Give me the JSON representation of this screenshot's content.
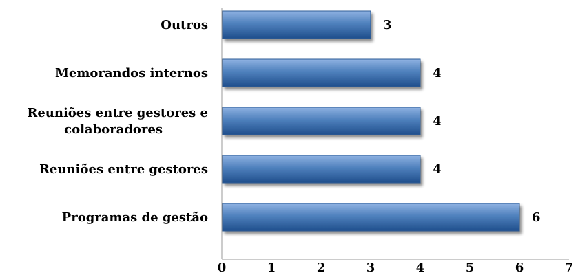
{
  "chart_data": {
    "type": "bar",
    "orientation": "horizontal",
    "categories": [
      "Outros",
      "Memorandos internos",
      "Reuniões entre gestores e colaboradores",
      "Reuniões entre gestores",
      "Programas de gestão"
    ],
    "category_label_lines": [
      [
        "Outros"
      ],
      [
        "Memorandos internos"
      ],
      [
        "Reuniões entre gestores e",
        "colaboradores"
      ],
      [
        "Reuniões entre gestores"
      ],
      [
        "Programas de gestão"
      ]
    ],
    "values": [
      3,
      4,
      4,
      4,
      6
    ],
    "data_labels": [
      "3",
      "4",
      "4",
      "4",
      "6"
    ],
    "x_ticks": [
      "0",
      "1",
      "2",
      "3",
      "4",
      "5",
      "6",
      "7"
    ],
    "xlim": [
      0,
      7
    ],
    "grid": false,
    "legend": "none",
    "title": "",
    "xlabel": "",
    "ylabel": "",
    "colors": {
      "bar_main": "#4F81BD",
      "bar_light": "#8FB2E2",
      "bar_dark": "#1F4E8C",
      "bar_stroke": "#2E5C95",
      "axis": "#9A9A9A",
      "shadow": "#9C9C9C"
    }
  }
}
